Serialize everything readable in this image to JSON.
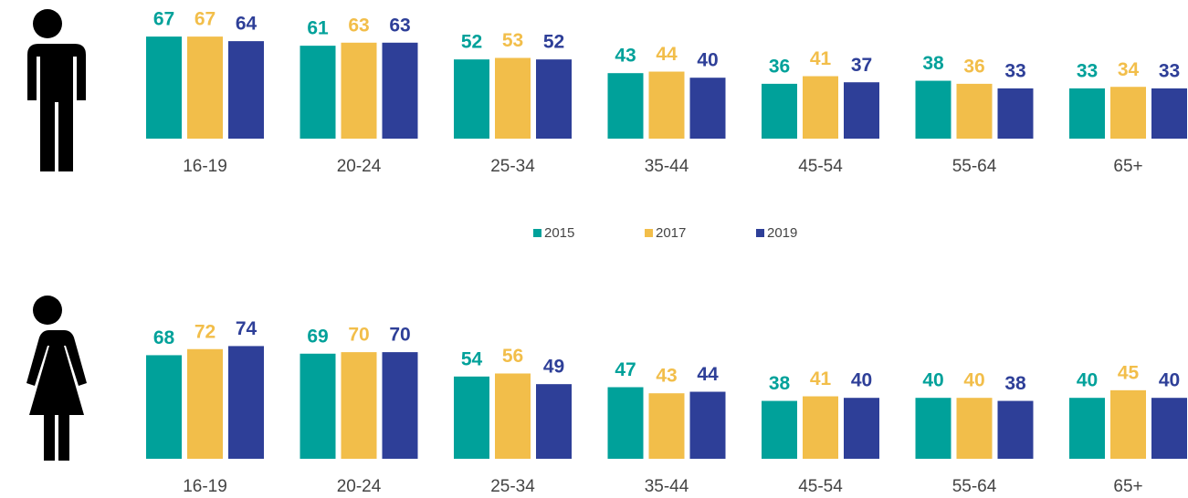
{
  "chart_data": [
    {
      "type": "bar",
      "categories": [
        "16-19",
        "20-24",
        "25-34",
        "35-44",
        "45-54",
        "55-64",
        "65+"
      ],
      "series": [
        {
          "name": "2015",
          "color": "#00a19a",
          "values": [
            67,
            61,
            52,
            43,
            36,
            38,
            33
          ]
        },
        {
          "name": "2017",
          "color": "#f2be4a",
          "values": [
            67,
            63,
            53,
            44,
            41,
            36,
            34
          ]
        },
        {
          "name": "2019",
          "color": "#2e3f98",
          "values": [
            64,
            63,
            52,
            40,
            37,
            33,
            33
          ]
        }
      ]
    },
    {
      "type": "bar",
      "categories": [
        "16-19",
        "20-24",
        "25-34",
        "35-44",
        "45-54",
        "55-64",
        "65+"
      ],
      "series": [
        {
          "name": "2015",
          "color": "#00a19a",
          "values": [
            68,
            69,
            54,
            47,
            38,
            40,
            40
          ]
        },
        {
          "name": "2017",
          "color": "#f2be4a",
          "values": [
            72,
            70,
            56,
            43,
            41,
            40,
            45
          ]
        },
        {
          "name": "2019",
          "color": "#2e3f98",
          "values": [
            74,
            70,
            49,
            44,
            40,
            38,
            40
          ]
        }
      ]
    }
  ]
}
